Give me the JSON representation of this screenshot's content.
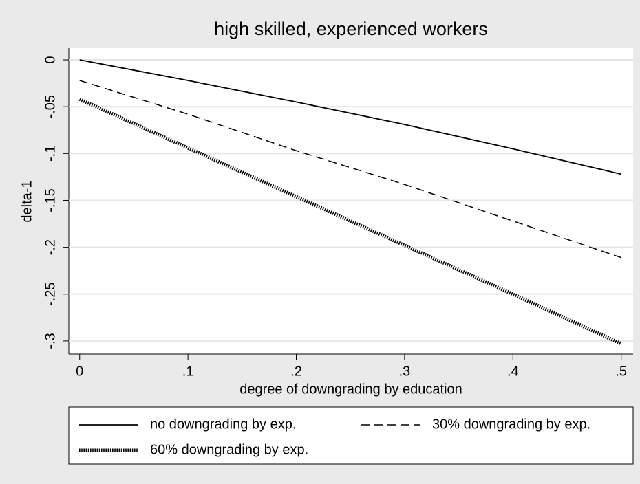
{
  "chart_data": {
    "type": "line",
    "title": "high skilled, experienced workers",
    "xlabel": "degree of downgrading by education",
    "ylabel": "delta-1",
    "x": [
      0,
      0.1,
      0.2,
      0.3,
      0.4,
      0.5
    ],
    "series": [
      {
        "name": "no downgrading by exp.",
        "color": "#000000",
        "style": "solid",
        "values": [
          0,
          -0.022,
          -0.045,
          -0.069,
          -0.095,
          -0.122
        ]
      },
      {
        "name": "30% downgrading by exp.",
        "color": "#000000",
        "style": "dashed",
        "values": [
          -0.022,
          -0.058,
          -0.097,
          -0.133,
          -0.172,
          -0.211
        ]
      },
      {
        "name": "60% downgrading by exp.",
        "color": "#000000",
        "style": "dotted",
        "values": [
          -0.042,
          -0.094,
          -0.146,
          -0.198,
          -0.25,
          -0.303
        ]
      }
    ],
    "xlim": [
      -0.01,
      0.511
    ],
    "ylim": [
      -0.314,
      0.0125
    ],
    "xticks": [
      0,
      {
        "value": 0.1,
        "label": ".1"
      },
      {
        "value": 0.2,
        "label": ".2"
      },
      {
        "value": 0.3,
        "label": ".3"
      },
      {
        "value": 0.4,
        "label": ".4"
      },
      {
        "value": 0.5,
        "label": ".5"
      }
    ],
    "yticks": [
      0,
      {
        "value": -0.05,
        "label": "-.05"
      },
      {
        "value": -0.1,
        "label": "-.1"
      },
      {
        "value": -0.15,
        "label": "-.15"
      },
      {
        "value": -0.2,
        "label": "-.2"
      },
      {
        "value": -0.25,
        "label": "-.25"
      },
      {
        "value": -0.3,
        "label": "-.3"
      }
    ],
    "grid": true,
    "legend": "bottom"
  }
}
